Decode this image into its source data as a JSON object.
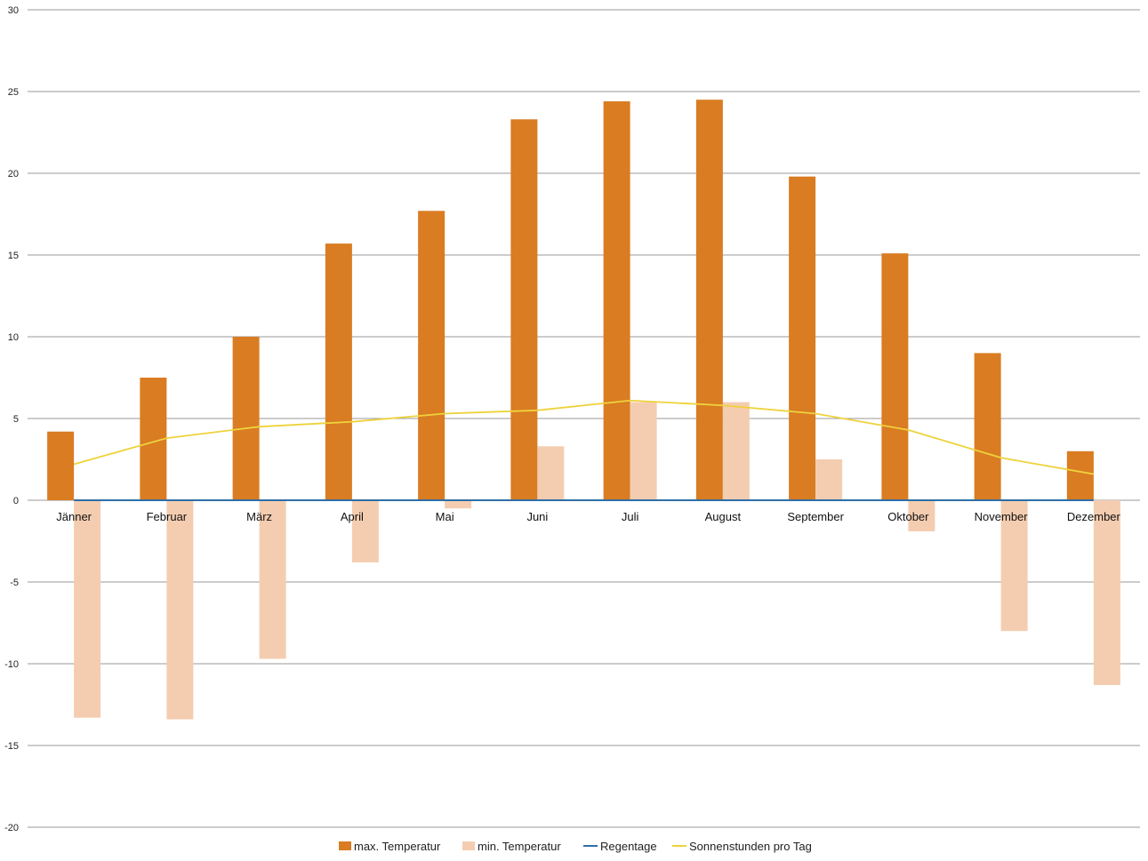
{
  "chart_data": {
    "type": "bar",
    "title": "",
    "xlabel": "",
    "ylabel": "",
    "ylim": [
      -20,
      30
    ],
    "yticks": [
      30,
      25,
      20,
      15,
      10,
      5,
      0,
      -5,
      -10,
      -15,
      -20
    ],
    "grid": true,
    "legend_position": "bottom",
    "categories": [
      "Jänner",
      "Februar",
      "März",
      "April",
      "Mai",
      "Juni",
      "Juli",
      "August",
      "September",
      "Oktober",
      "November",
      "Dezember"
    ],
    "series": [
      {
        "name": "max. Temperatur",
        "kind": "bar",
        "color": "#d97c22",
        "values": [
          4.2,
          7.5,
          10.0,
          15.7,
          17.7,
          23.3,
          24.4,
          24.5,
          19.8,
          15.1,
          9.0,
          3.0
        ]
      },
      {
        "name": "min. Temperatur",
        "kind": "bar",
        "color": "#f4cdb0",
        "values": [
          -13.3,
          -13.4,
          -9.7,
          -3.8,
          -0.5,
          3.3,
          6.0,
          6.0,
          2.5,
          -1.9,
          -8.0,
          -11.3
        ]
      },
      {
        "name": "Regentage",
        "kind": "line",
        "color": "#2f6ea6",
        "values": [
          0,
          0,
          0,
          0,
          0,
          0,
          0,
          0,
          0,
          0,
          0,
          0
        ]
      },
      {
        "name": "Sonnenstunden pro Tag",
        "kind": "line",
        "color": "#eed23c",
        "values": [
          2.2,
          3.8,
          4.5,
          4.8,
          5.3,
          5.5,
          6.1,
          5.8,
          5.3,
          4.3,
          2.6,
          1.6
        ]
      }
    ]
  }
}
